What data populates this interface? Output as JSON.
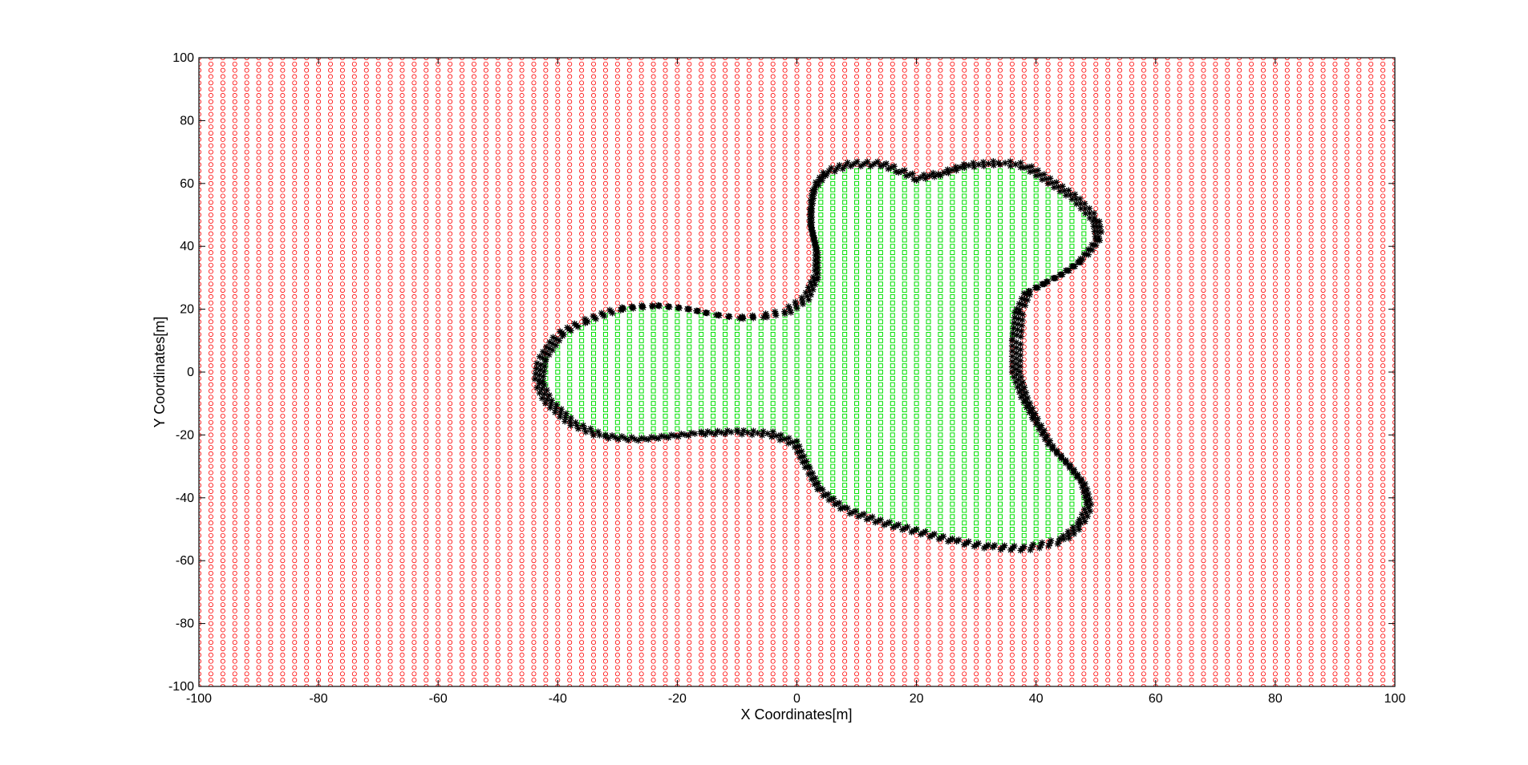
{
  "chart_data": {
    "type": "scatter",
    "xlabel": "X Coordinates[m]",
    "ylabel": "Y Coordinates[m]",
    "xlim": [
      -100,
      100
    ],
    "ylim": [
      -100,
      100
    ],
    "x_ticks": [
      -100,
      -80,
      -60,
      -40,
      -20,
      0,
      20,
      40,
      60,
      80,
      100
    ],
    "y_ticks": [
      -100,
      -80,
      -60,
      -40,
      -20,
      0,
      20,
      40,
      60,
      80,
      100
    ],
    "x_tick_labels": [
      "-100",
      "-80",
      "-60",
      "-40",
      "-20",
      "0",
      "20",
      "40",
      "60",
      "80",
      "100"
    ],
    "y_tick_labels": [
      "-100",
      "-80",
      "-60",
      "-40",
      "-20",
      "0",
      "20",
      "40",
      "60",
      "80",
      "100"
    ],
    "grid": false,
    "grid_spacing": 2,
    "series": [
      {
        "role": "outside-points",
        "marker": "circle",
        "color": "#ff0000",
        "description_in_data": "all grid points outside the region"
      },
      {
        "role": "inside-points",
        "marker": "square",
        "color": "#00e000",
        "description_in_data": "all grid points inside the region"
      },
      {
        "role": "boundary-points",
        "marker": "star",
        "color": "#000000"
      }
    ],
    "region_boundary": [
      [
        3,
        58
      ],
      [
        5,
        63
      ],
      [
        9,
        65.5
      ],
      [
        14,
        65.5
      ],
      [
        17,
        63.5
      ],
      [
        20,
        61
      ],
      [
        24,
        62.5
      ],
      [
        28,
        65
      ],
      [
        34,
        66
      ],
      [
        38,
        65
      ],
      [
        42,
        60
      ],
      [
        46,
        55
      ],
      [
        49.5,
        48
      ],
      [
        50,
        42
      ],
      [
        47,
        35
      ],
      [
        44,
        31
      ],
      [
        41,
        28
      ],
      [
        38,
        25
      ],
      [
        36.5,
        19
      ],
      [
        36,
        10
      ],
      [
        36,
        0
      ],
      [
        37.5,
        -8
      ],
      [
        39.5,
        -15
      ],
      [
        42,
        -23
      ],
      [
        45,
        -29
      ],
      [
        47.5,
        -35
      ],
      [
        48.5,
        -42
      ],
      [
        47,
        -48
      ],
      [
        44,
        -53
      ],
      [
        38,
        -55.5
      ],
      [
        32,
        -55
      ],
      [
        26,
        -53
      ],
      [
        20,
        -50
      ],
      [
        14,
        -47
      ],
      [
        8,
        -43
      ],
      [
        4,
        -37
      ],
      [
        2,
        -30
      ],
      [
        0,
        -22
      ],
      [
        -4,
        -19
      ],
      [
        -10,
        -18.5
      ],
      [
        -16,
        -19
      ],
      [
        -21,
        -20
      ],
      [
        -26,
        -21
      ],
      [
        -32,
        -20
      ],
      [
        -37,
        -16
      ],
      [
        -41,
        -9
      ],
      [
        -42.5,
        -3
      ],
      [
        -42,
        4
      ],
      [
        -39,
        12
      ],
      [
        -35,
        16
      ],
      [
        -29,
        20
      ],
      [
        -23,
        21
      ],
      [
        -18,
        20
      ],
      [
        -13,
        18
      ],
      [
        -9,
        17
      ],
      [
        -5,
        17.5
      ],
      [
        -1,
        19
      ],
      [
        2,
        23
      ],
      [
        3.5,
        30
      ],
      [
        3.5,
        38
      ],
      [
        2.5,
        46
      ],
      [
        2.5,
        52
      ]
    ]
  },
  "colors": {
    "outside": "#ff0000",
    "inside": "#00e000",
    "boundary": "#000000",
    "axes": "#000000",
    "background": "#ffffff"
  }
}
